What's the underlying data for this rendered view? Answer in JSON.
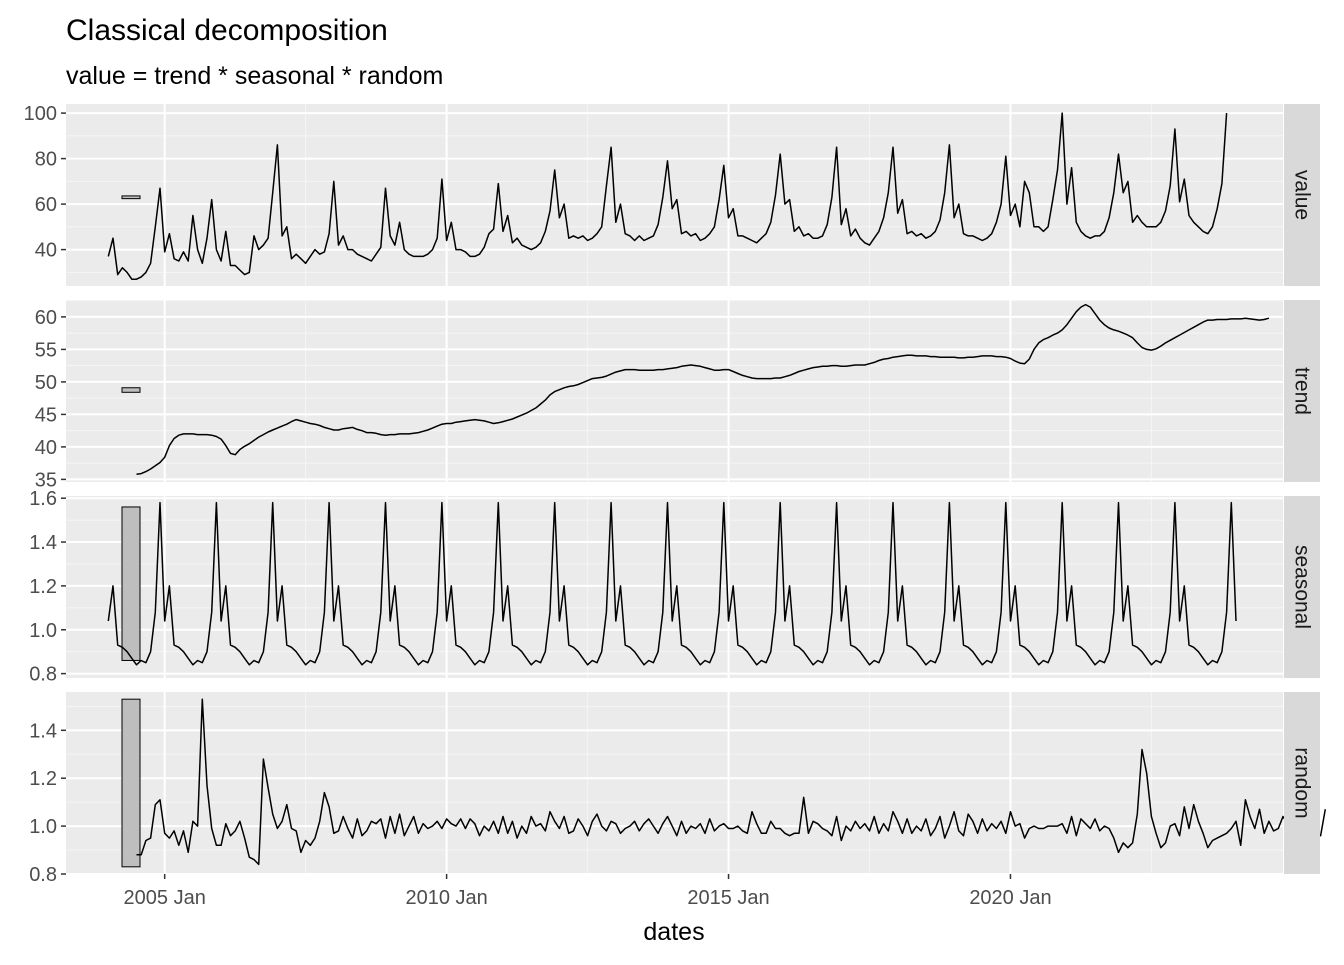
{
  "chart_data": {
    "type": "line",
    "title": "Classical decomposition",
    "subtitle": "value = trend * seasonal * random",
    "xlabel": "dates",
    "x_ticks": [
      "2005 Jan",
      "2010 Jan",
      "2015 Jan",
      "2020 Jan"
    ],
    "x_range": [
      "2003-04",
      "2024-11"
    ],
    "x_start": "2004-01",
    "seasonal_pattern": [
      1.04,
      1.2,
      0.93,
      0.92,
      0.9,
      0.87,
      0.84,
      0.86,
      0.85,
      0.9,
      1.08,
      1.58
    ],
    "panels": [
      {
        "name": "value",
        "ylim": [
          24,
          104
        ],
        "yticks": [
          40,
          60,
          80,
          100
        ],
        "scale_bar": [
          62.4,
          63.6
        ],
        "values": [
          37,
          45,
          29,
          32,
          30,
          27,
          27,
          28,
          30,
          34,
          50,
          67,
          39,
          47,
          36,
          35,
          39,
          35,
          55,
          40,
          34,
          45,
          62,
          40,
          35,
          48,
          33,
          33,
          31,
          29,
          30,
          46,
          40,
          42,
          45,
          65,
          86,
          46,
          50,
          36,
          38,
          36,
          34,
          37,
          40,
          38,
          39,
          47,
          70,
          42,
          46,
          40,
          40,
          38,
          37,
          36,
          35,
          38,
          41,
          67,
          46,
          42,
          52,
          40,
          38,
          37,
          37,
          37,
          38,
          40,
          45,
          71,
          44,
          52,
          40,
          40,
          39,
          37,
          37,
          38,
          41,
          47,
          49,
          69,
          48,
          55,
          43,
          45,
          42,
          41,
          40,
          41,
          43,
          48,
          57,
          75,
          54,
          60,
          45,
          46,
          45,
          46,
          44,
          45,
          47,
          50,
          68,
          85,
          52,
          60,
          47,
          46,
          44,
          46,
          44,
          45,
          46,
          51,
          63,
          79,
          58,
          62,
          47,
          48,
          46,
          47,
          44,
          45,
          47,
          50,
          62,
          77,
          54,
          58,
          46,
          46,
          45,
          44,
          43,
          45,
          47,
          52,
          64,
          82,
          60,
          62,
          48,
          50,
          46,
          47,
          45,
          45,
          46,
          51,
          63,
          85,
          51,
          58,
          46,
          49,
          45,
          43,
          42,
          45,
          48,
          54,
          65,
          85,
          56,
          62,
          47,
          48,
          46,
          47,
          45,
          46,
          48,
          53,
          65,
          86,
          54,
          60,
          47,
          46,
          46,
          45,
          44,
          45,
          47,
          52,
          60,
          81,
          55,
          60,
          50,
          70,
          65,
          50,
          50,
          48,
          50,
          62,
          75,
          100,
          60,
          76,
          52,
          48,
          46,
          45,
          46,
          46,
          48,
          54,
          65,
          82,
          65,
          70,
          52,
          55,
          52,
          50,
          50,
          50,
          52,
          57,
          68,
          93,
          61,
          71,
          55,
          52,
          50,
          48,
          47,
          50,
          58,
          69,
          100
        ]
      },
      {
        "name": "trend",
        "ylim": [
          34.6,
          62.6
        ],
        "yticks": [
          35,
          40,
          45,
          50,
          55,
          60
        ],
        "scale_bar": [
          48.4,
          49.1
        ],
        "start_index": 6,
        "values": [
          35.8,
          35.9,
          36.2,
          36.6,
          37.1,
          37.6,
          38.4,
          40.2,
          41.3,
          41.8,
          42.0,
          42.0,
          42.0,
          41.9,
          41.9,
          41.9,
          41.8,
          41.6,
          41.2,
          40.2,
          39.0,
          38.8,
          39.6,
          40.1,
          40.5,
          41.0,
          41.5,
          41.9,
          42.3,
          42.6,
          42.9,
          43.2,
          43.5,
          43.9,
          44.2,
          44.0,
          43.8,
          43.6,
          43.5,
          43.3,
          43.0,
          42.8,
          42.6,
          42.6,
          42.8,
          42.9,
          43.0,
          42.7,
          42.5,
          42.2,
          42.2,
          42.1,
          41.9,
          41.8,
          41.9,
          41.9,
          42.0,
          42.0,
          42.0,
          42.1,
          42.2,
          42.4,
          42.6,
          42.9,
          43.2,
          43.5,
          43.6,
          43.6,
          43.8,
          43.9,
          44.0,
          44.1,
          44.2,
          44.1,
          44.0,
          43.8,
          43.6,
          43.7,
          43.9,
          44.1,
          44.3,
          44.6,
          44.9,
          45.2,
          45.6,
          46.0,
          46.6,
          47.2,
          48.0,
          48.5,
          48.8,
          49.1,
          49.3,
          49.4,
          49.6,
          49.9,
          50.2,
          50.5,
          50.6,
          50.7,
          50.9,
          51.2,
          51.5,
          51.7,
          51.9,
          51.9,
          51.9,
          51.8,
          51.8,
          51.8,
          51.8,
          51.9,
          51.9,
          52.0,
          52.1,
          52.2,
          52.4,
          52.5,
          52.6,
          52.5,
          52.4,
          52.2,
          52.0,
          51.8,
          51.8,
          51.9,
          51.9,
          51.6,
          51.3,
          51.0,
          50.8,
          50.6,
          50.5,
          50.5,
          50.5,
          50.5,
          50.6,
          50.6,
          50.8,
          51.0,
          51.3,
          51.6,
          51.8,
          52.0,
          52.2,
          52.3,
          52.4,
          52.4,
          52.5,
          52.5,
          52.4,
          52.4,
          52.5,
          52.6,
          52.6,
          52.6,
          52.8,
          53.0,
          53.3,
          53.5,
          53.6,
          53.8,
          53.9,
          54.0,
          54.1,
          54.1,
          54.0,
          54.0,
          54.0,
          53.9,
          53.9,
          53.8,
          53.8,
          53.8,
          53.8,
          53.7,
          53.7,
          53.8,
          53.8,
          53.9,
          54.0,
          54.0,
          54.0,
          53.9,
          53.9,
          53.8,
          53.6,
          53.2,
          52.9,
          52.8,
          53.5,
          55.0,
          56.0,
          56.5,
          56.8,
          57.2,
          57.5,
          58.0,
          58.8,
          59.8,
          60.8,
          61.5,
          61.9,
          61.5,
          60.5,
          59.5,
          58.8,
          58.3,
          58.0,
          57.8,
          57.5,
          57.2,
          56.8,
          56.0,
          55.3,
          55.0,
          54.9,
          55.1,
          55.5,
          56.0,
          56.4,
          56.8,
          57.2,
          57.6,
          58.0,
          58.4,
          58.8,
          59.2,
          59.5,
          59.5,
          59.6,
          59.6,
          59.6,
          59.7,
          59.7,
          59.7,
          59.8,
          59.7,
          59.6,
          59.5,
          59.6,
          59.8
        ]
      },
      {
        "name": "seasonal",
        "ylim": [
          0.78,
          1.61
        ],
        "yticks": [
          0.8,
          1.0,
          1.2,
          1.4,
          1.6
        ],
        "scale_bar": [
          0.86,
          1.56
        ],
        "years": 20
      },
      {
        "name": "random",
        "ylim": [
          0.8,
          1.56
        ],
        "yticks": [
          0.8,
          1.0,
          1.2,
          1.4
        ],
        "scale_bar": [
          0.83,
          1.53
        ],
        "start_index": 6,
        "values": [
          0.88,
          0.88,
          0.94,
          0.95,
          1.09,
          1.11,
          0.97,
          0.95,
          0.98,
          0.92,
          0.98,
          0.89,
          1.02,
          1.0,
          1.53,
          1.17,
          0.99,
          0.92,
          0.92,
          1.01,
          0.96,
          0.98,
          1.02,
          0.95,
          0.87,
          0.86,
          0.84,
          1.28,
          1.16,
          1.05,
          0.99,
          1.02,
          1.09,
          0.99,
          0.98,
          0.89,
          0.94,
          0.92,
          0.95,
          1.02,
          1.14,
          1.08,
          0.97,
          0.98,
          1.04,
          0.99,
          0.95,
          1.03,
          0.96,
          0.98,
          1.02,
          1.01,
          1.03,
          0.95,
          1.04,
          0.97,
          1.05,
          0.96,
          1.0,
          1.04,
          0.97,
          1.01,
          0.99,
          1.0,
          1.02,
          0.99,
          1.03,
          1.01,
          1.0,
          1.03,
          0.99,
          1.03,
          1.01,
          0.96,
          1.0,
          0.98,
          1.02,
          0.97,
          1.04,
          0.97,
          1.02,
          0.95,
          1.0,
          0.97,
          1.04,
          1.0,
          1.01,
          0.98,
          1.06,
          1.02,
          0.99,
          1.04,
          0.97,
          0.98,
          1.03,
          1.0,
          0.96,
          1.02,
          1.05,
          1.0,
          0.98,
          1.02,
          1.01,
          0.97,
          0.99,
          1.0,
          1.02,
          0.98,
          1.01,
          1.03,
          1.0,
          0.97,
          1.01,
          1.04,
          1.0,
          0.96,
          1.02,
          0.97,
          1.0,
          0.99,
          1.01,
          0.97,
          1.03,
          0.98,
          1.0,
          1.01,
          0.99,
          0.99,
          1.0,
          0.98,
          0.97,
          1.06,
          1.01,
          0.97,
          0.97,
          1.02,
          0.99,
          0.99,
          0.97,
          0.96,
          0.97,
          0.97,
          1.12,
          0.97,
          1.02,
          1.01,
          0.99,
          0.98,
          0.96,
          1.04,
          0.94,
          1.0,
          0.98,
          1.02,
          0.99,
          1.01,
          0.98,
          1.04,
          0.97,
          1.01,
          0.98,
          1.06,
          1.02,
          0.97,
          1.03,
          0.97,
          1.0,
          0.98,
          1.03,
          0.96,
          0.99,
          1.04,
          0.95,
          1.0,
          1.06,
          0.98,
          0.96,
          1.05,
          1.02,
          0.97,
          1.03,
          0.98,
          1.01,
          0.99,
          1.02,
          0.97,
          1.06,
          1.0,
          1.01,
          0.95,
          0.99,
          1.0,
          0.99,
          0.99,
          1.0,
          1.0,
          1.0,
          1.01,
          0.97,
          1.04,
          0.96,
          1.03,
          1.01,
          0.99,
          1.03,
          0.98,
          1.0,
          0.99,
          0.95,
          0.89,
          0.93,
          0.91,
          0.93,
          1.05,
          1.32,
          1.22,
          1.04,
          0.97,
          0.91,
          0.93,
          1.0,
          1.01,
          0.96,
          1.08,
          0.99,
          1.09,
          1.02,
          0.97,
          0.91,
          0.94,
          0.95,
          0.96,
          0.97,
          0.99,
          1.02,
          0.92,
          1.11,
          1.04,
          0.99,
          1.07,
          0.97,
          1.02,
          0.98,
          0.99,
          1.04,
          1.01,
          0.99,
          0.99,
          0.99,
          0.99,
          1.07,
          0.98,
          0.96,
          1.07
        ]
      }
    ]
  }
}
